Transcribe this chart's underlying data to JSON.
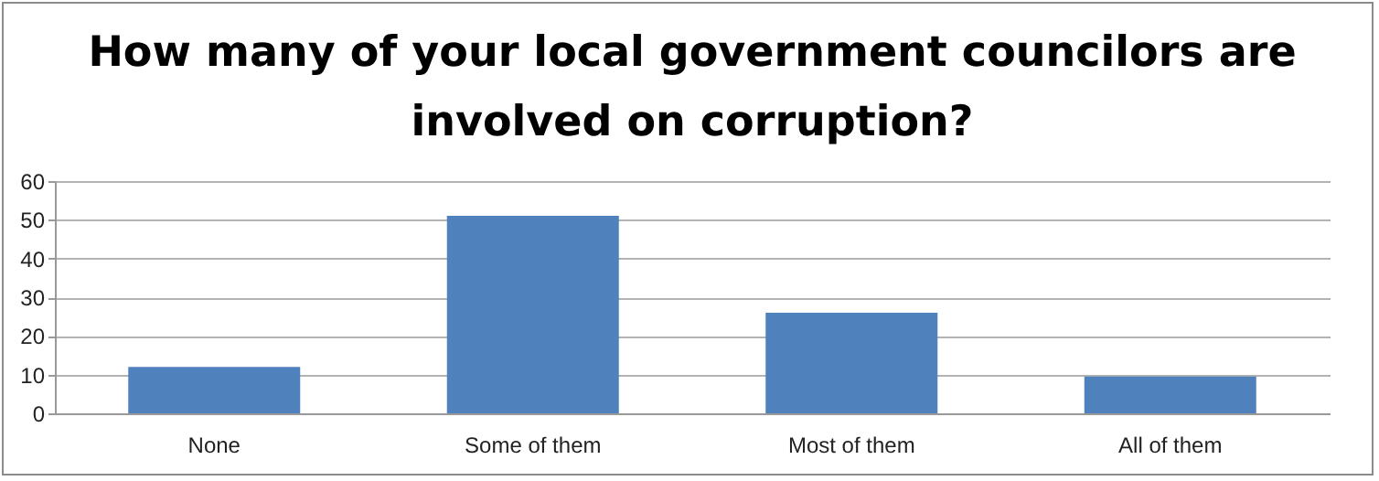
{
  "chart_data": {
    "type": "bar",
    "title": "How many of your local government councilors are involved on corruption?",
    "categories": [
      "None",
      "Some of them",
      "Most of them",
      "All of them"
    ],
    "values": [
      12,
      51,
      26,
      9.5
    ],
    "color": "#4f81bd",
    "ylim": [
      0,
      60
    ],
    "yticks": [
      0,
      10,
      20,
      30,
      40,
      50,
      60
    ],
    "grid": "y"
  }
}
